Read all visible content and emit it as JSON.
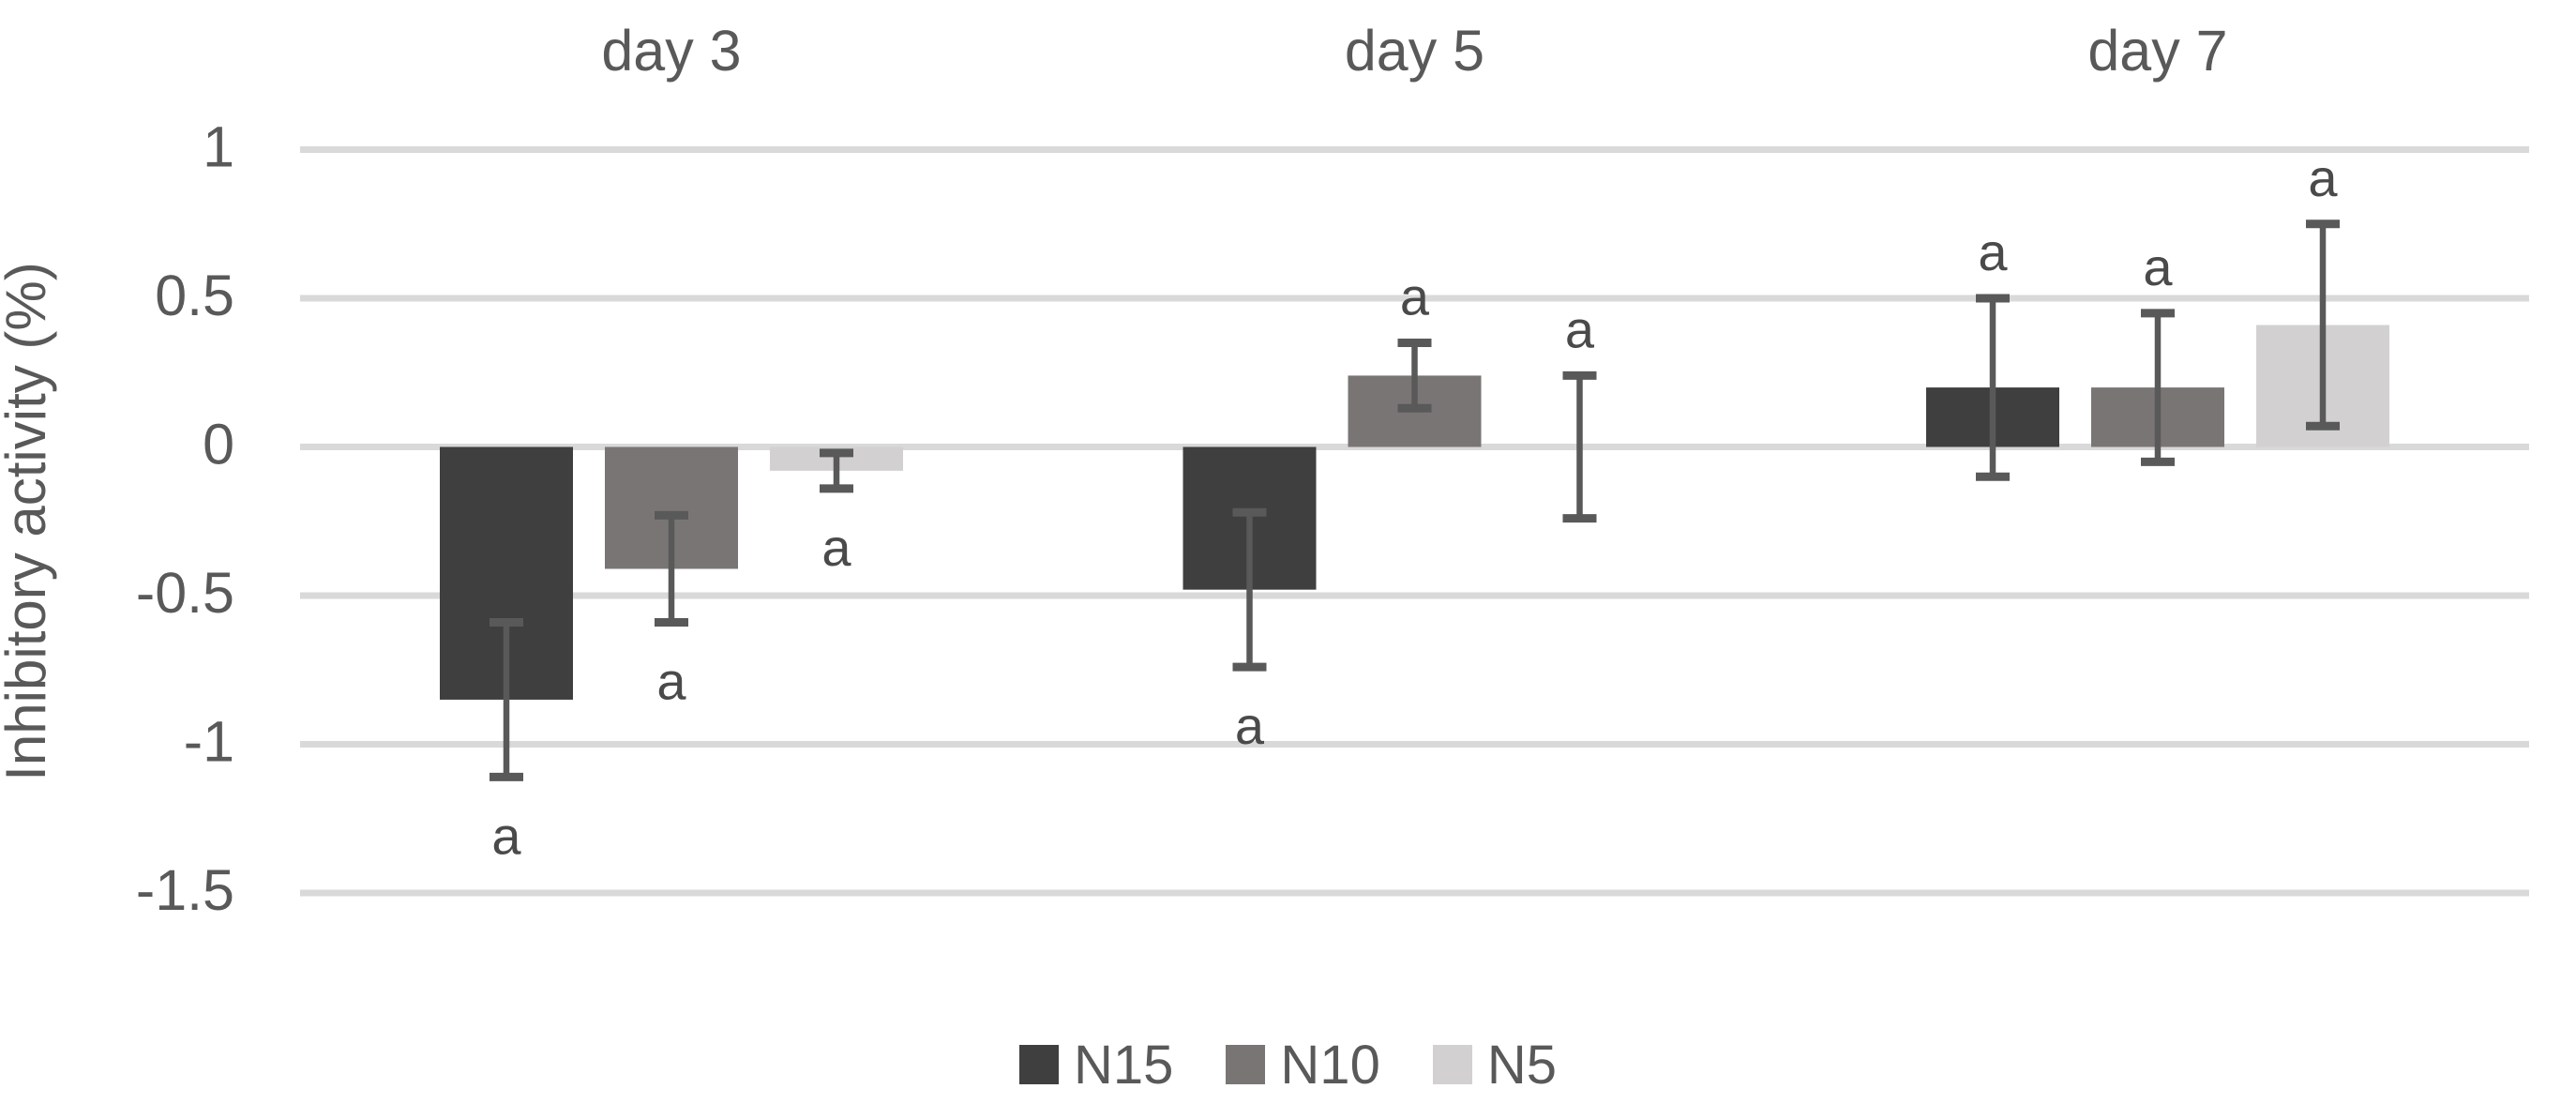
{
  "chart_data": {
    "type": "bar",
    "title": "",
    "ylabel": "Inhibitory activity (%)",
    "xlabel": "",
    "categories": [
      "day 3",
      "day 5",
      "day 7"
    ],
    "series": [
      {
        "name": "N15",
        "color": "#3f3f3f",
        "values": [
          -0.85,
          -0.48,
          0.2
        ],
        "errors": [
          0.26,
          0.26,
          0.3
        ],
        "point_labels": [
          "a",
          "a",
          "a"
        ]
      },
      {
        "name": "N10",
        "color": "#7a7575",
        "values": [
          -0.41,
          0.24,
          0.2
        ],
        "errors": [
          0.18,
          0.11,
          0.25
        ],
        "point_labels": [
          "a",
          "a",
          "a"
        ]
      },
      {
        "name": "N5",
        "color": "#d2d0d0",
        "values": [
          -0.08,
          0.0,
          0.41
        ],
        "errors": [
          0.06,
          0.24,
          0.34
        ],
        "point_labels": [
          "a",
          "a",
          "a"
        ]
      }
    ],
    "ylim": [
      -1.5,
      1
    ],
    "ytick_step": 0.5,
    "yticks": [
      "1",
      "0.5",
      "0",
      "-0.5",
      "-1",
      "-1.5"
    ],
    "grid": true,
    "legend_position": "bottom",
    "colors": {
      "gridline": "#d9d9d9",
      "error_bar": "#595959",
      "axis_text": "#595959",
      "annotation_text": "#4a4a4a",
      "background": "#ffffff"
    }
  }
}
